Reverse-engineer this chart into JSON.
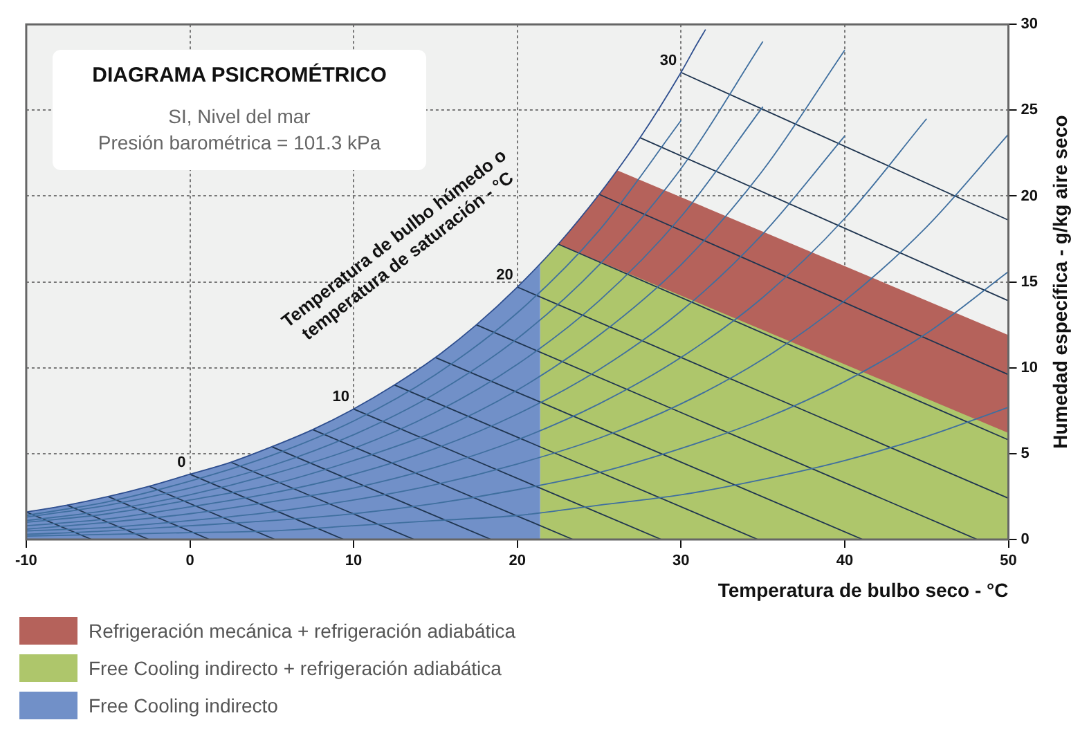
{
  "chart_data": {
    "type": "area",
    "title": "DIAGRAMA PSICROMÉTRICO",
    "subtitle": "SI, Nivel del mar\nPresión barométrica = 101.3 kPa",
    "xlabel": "Temperatura de bulbo seco - °C",
    "ylabel": "Humedad específica - g/kg aire seco",
    "xlim": [
      -10,
      50
    ],
    "xticks": [
      -10,
      0,
      10,
      20,
      30,
      40,
      50
    ],
    "ylim": [
      0,
      30
    ],
    "yticks": [
      0,
      5,
      10,
      15,
      20,
      25,
      30
    ],
    "grid": true,
    "legend": "bottom",
    "marker": "none",
    "line_style": "solid",
    "annotations": [
      "Temperatura de bulbo húmedo o\ntemperatura de saturación - °C",
      {
        "text": "0",
        "x": 0,
        "y": 3.8
      },
      {
        "text": "10",
        "x": 10,
        "y": 7.6
      },
      {
        "text": "20",
        "x": 20,
        "y": 14.7
      },
      {
        "text": "30",
        "x": 30,
        "y": 27.2
      }
    ],
    "series": [
      {
        "name": "Refrigeración mecánica + refrigeración adiabática",
        "color": "#b5625b",
        "x": [
          22.5,
          25,
          26.1,
          50
        ],
        "values": [
          17.2,
          20.1,
          21.5,
          11.9
        ]
      },
      {
        "name": "Free Cooling indirecto + refrigeración adiabática",
        "color": "#aec66b",
        "x": [
          21.4,
          22.5,
          50
        ],
        "values": [
          16.1,
          17.2,
          6.2
        ]
      },
      {
        "name": "Free Cooling indirecto",
        "color": "#7190c8",
        "x": [
          -10,
          -7.5,
          -5,
          -2.5,
          0,
          2.5,
          5,
          7.5,
          10,
          12.5,
          15,
          17.5,
          20,
          21.4
        ],
        "values": [
          1.6,
          2,
          2.5,
          3.1,
          3.8,
          4.5,
          5.4,
          6.4,
          7.6,
          9,
          10.6,
          12.5,
          14.7,
          16.1
        ]
      },
      {
        "type": "line",
        "color": "#2f4f8f",
        "x": [
          -10,
          -7.5,
          -5,
          -2.5,
          0,
          2.5,
          5,
          7.5,
          10,
          12.5,
          15,
          17.5,
          20,
          22.5,
          25,
          27.5,
          30,
          31,
          31.5
        ],
        "values": [
          1.6,
          2,
          2.5,
          3.1,
          3.8,
          4.5,
          5.4,
          6.4,
          7.6,
          9,
          10.6,
          12.5,
          14.7,
          17.2,
          20.1,
          23.4,
          27.2,
          28.9,
          29.7
        ]
      },
      {
        "type": "line",
        "color": "#3f6f9f",
        "x": [
          -10,
          -5,
          0,
          5,
          10,
          15,
          20,
          25,
          30,
          35,
          40,
          45,
          50
        ],
        "values": [
          0.2,
          0.3,
          0.4,
          0.5,
          0.8,
          1.1,
          1.4,
          2,
          2.6,
          3.5,
          4.6,
          6,
          7.7
        ]
      },
      {
        "type": "line",
        "color": "#3f6f9f",
        "x": [
          -10,
          -5,
          0,
          5,
          10,
          15,
          20,
          25,
          30,
          35,
          40,
          45,
          50
        ],
        "values": [
          0.3,
          0.5,
          0.8,
          1.1,
          1.5,
          2.1,
          2.9,
          3.9,
          5.3,
          7,
          9.2,
          12,
          15.6
        ]
      },
      {
        "type": "line",
        "color": "#3f6f9f",
        "x": [
          -10,
          -5,
          0,
          5,
          10,
          15,
          20,
          25,
          30,
          35,
          40,
          45,
          50
        ],
        "values": [
          0.5,
          0.7,
          1.1,
          1.6,
          2.3,
          3.2,
          4.4,
          5.9,
          7.9,
          10.5,
          13.9,
          18.2,
          23.6
        ]
      },
      {
        "type": "line",
        "color": "#3f6f9f",
        "x": [
          -10,
          -5,
          0,
          5,
          10,
          15,
          20,
          25,
          30,
          35,
          40,
          45
        ],
        "values": [
          0.6,
          1,
          1.5,
          2.2,
          3,
          4.2,
          5.8,
          7.9,
          10.6,
          14.1,
          18.7,
          24.5
        ]
      },
      {
        "type": "line",
        "color": "#3f6f9f",
        "x": [
          -10,
          -5,
          0,
          5,
          10,
          15,
          20,
          25,
          30,
          35,
          40
        ],
        "values": [
          0.8,
          1.2,
          1.9,
          2.7,
          3.8,
          5.3,
          7.3,
          9.9,
          13.3,
          17.8,
          23.5
        ]
      },
      {
        "type": "line",
        "color": "#3f6f9f",
        "x": [
          -10,
          -5,
          0,
          5,
          10,
          15,
          20,
          25,
          30,
          35,
          40
        ],
        "values": [
          1,
          1.5,
          2.3,
          3.2,
          4.6,
          6.3,
          8.7,
          11.9,
          16,
          21.5,
          28.5
        ]
      },
      {
        "type": "line",
        "color": "#3f6f9f",
        "x": [
          -10,
          -5,
          0,
          5,
          10,
          15,
          20,
          25,
          30,
          35
        ],
        "values": [
          1.1,
          1.7,
          2.6,
          3.8,
          5.3,
          7.4,
          10.2,
          13.9,
          18.8,
          25.2
        ]
      },
      {
        "type": "line",
        "color": "#3f6f9f",
        "x": [
          -10,
          -5,
          0,
          5,
          10,
          15,
          20,
          25,
          30,
          35
        ],
        "values": [
          1.3,
          2,
          3,
          4.3,
          6.1,
          8.5,
          11.7,
          16,
          21.6,
          29
        ]
      },
      {
        "type": "line",
        "color": "#3f6f9f",
        "x": [
          -10,
          -5,
          0,
          5,
          10,
          15,
          20,
          25,
          30
        ],
        "values": [
          1.4,
          2.2,
          3.4,
          4.9,
          6.9,
          9.6,
          13.2,
          18,
          24.4
        ]
      },
      {
        "type": "line",
        "color": "#1f3550",
        "x": [
          -10,
          -6
        ],
        "values": [
          1.6,
          0
        ]
      },
      {
        "type": "line",
        "color": "#1f3550",
        "x": [
          -7.5,
          -2.5
        ],
        "values": [
          2,
          0
        ]
      },
      {
        "type": "line",
        "color": "#1f3550",
        "x": [
          -5,
          1.2
        ],
        "values": [
          2.5,
          0
        ]
      },
      {
        "type": "line",
        "color": "#1f3550",
        "x": [
          -2.5,
          5.2
        ],
        "values": [
          3.1,
          0
        ]
      },
      {
        "type": "line",
        "color": "#1f3550",
        "x": [
          0,
          9.4
        ],
        "values": [
          3.8,
          0
        ]
      },
      {
        "type": "line",
        "color": "#1f3550",
        "x": [
          2.5,
          13.7
        ],
        "values": [
          4.5,
          0
        ]
      },
      {
        "type": "line",
        "color": "#1f3550",
        "x": [
          5,
          18.4
        ],
        "values": [
          5.4,
          0
        ]
      },
      {
        "type": "line",
        "color": "#1f3550",
        "x": [
          7.5,
          23.4
        ],
        "values": [
          6.4,
          0
        ]
      },
      {
        "type": "line",
        "color": "#1f3550",
        "x": [
          10,
          28.8
        ],
        "values": [
          7.6,
          0
        ]
      },
      {
        "type": "line",
        "color": "#1f3550",
        "x": [
          12.5,
          34.7
        ],
        "values": [
          9,
          0
        ]
      },
      {
        "type": "line",
        "color": "#1f3550",
        "x": [
          15,
          41.1
        ],
        "values": [
          10.6,
          0
        ]
      },
      {
        "type": "line",
        "color": "#1f3550",
        "x": [
          17.5,
          48.1
        ],
        "values": [
          12.5,
          0
        ]
      },
      {
        "type": "line",
        "color": "#1f3550",
        "x": [
          20,
          50
        ],
        "values": [
          14.7,
          2.4
        ]
      },
      {
        "type": "line",
        "color": "#1f3550",
        "x": [
          22.5,
          50
        ],
        "values": [
          17.2,
          5.8
        ]
      },
      {
        "type": "line",
        "color": "#1f3550",
        "x": [
          25,
          50
        ],
        "values": [
          20.1,
          9.6
        ]
      },
      {
        "type": "line",
        "color": "#1f3550",
        "x": [
          27.5,
          50
        ],
        "values": [
          23.4,
          13.9
        ]
      },
      {
        "type": "line",
        "color": "#1f3550",
        "x": [
          30,
          50
        ],
        "values": [
          27.2,
          18.6
        ]
      }
    ]
  }
}
